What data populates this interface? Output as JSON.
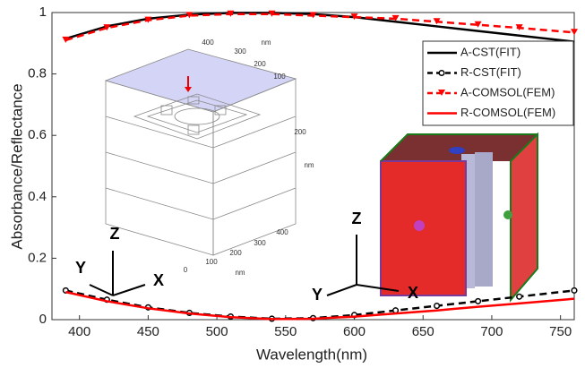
{
  "chart_data": {
    "type": "line",
    "xlabel": "Wavelength(nm)",
    "ylabel": "Absorbance/Reflectance",
    "xlim": [
      380,
      760
    ],
    "xticks": [
      400,
      450,
      500,
      550,
      600,
      650,
      700,
      750
    ],
    "ylim": [
      0,
      1
    ],
    "yticks": [
      0,
      0.2,
      0.4,
      0.6,
      0.8,
      1
    ],
    "legend": "upper right",
    "x": [
      390,
      420,
      450,
      480,
      510,
      540,
      570,
      600,
      630,
      660,
      690,
      720,
      760
    ],
    "series": [
      {
        "name": "A-CST(FIT)",
        "color": "#000000",
        "dash": false,
        "marker": "none",
        "values": [
          0.915,
          0.955,
          0.98,
          0.993,
          0.999,
          0.999,
          0.995,
          0.985,
          0.97,
          0.955,
          0.94,
          0.925,
          0.905
        ]
      },
      {
        "name": "R-CST(FIT)",
        "color": "#000000",
        "dash": true,
        "marker": "circle",
        "values": [
          0.095,
          0.065,
          0.04,
          0.022,
          0.01,
          0.003,
          0.005,
          0.015,
          0.03,
          0.045,
          0.06,
          0.075,
          0.095
        ]
      },
      {
        "name": "A-COMSOL(FEM)",
        "color": "#ff0000",
        "dash": true,
        "marker": "triangle",
        "values": [
          0.91,
          0.95,
          0.975,
          0.99,
          0.995,
          0.995,
          0.99,
          0.985,
          0.98,
          0.97,
          0.96,
          0.95,
          0.935
        ]
      },
      {
        "name": "R-COMSOL(FEM)",
        "color": "#ff0000",
        "dash": false,
        "marker": "none",
        "values": [
          0.09,
          0.06,
          0.037,
          0.02,
          0.008,
          0.002,
          0.003,
          0.01,
          0.02,
          0.03,
          0.042,
          0.053,
          0.068
        ]
      }
    ],
    "inset_labels": [
      "400",
      "nm",
      "300",
      "200",
      "100",
      "200",
      "nm",
      "0",
      "100",
      "200",
      "300",
      "400",
      "nm"
    ],
    "triad_left": [
      "Z",
      "Y",
      "X"
    ],
    "triad_right": [
      "Z",
      "Y",
      "X"
    ]
  }
}
